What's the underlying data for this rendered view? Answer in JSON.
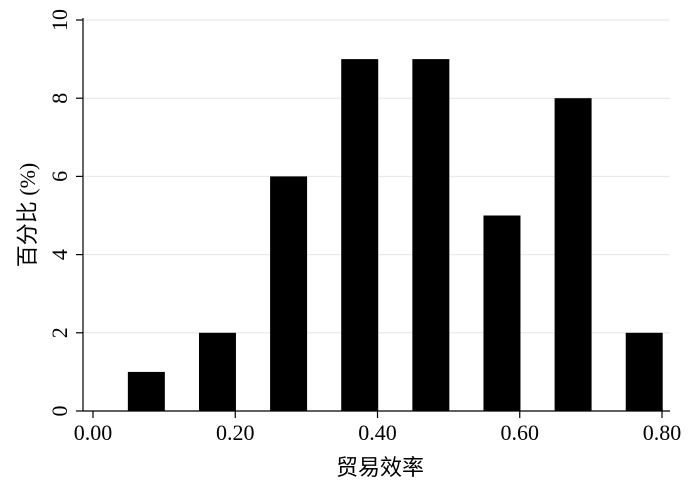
{
  "chart_data": {
    "type": "bar",
    "x_label": "贸易效率",
    "y_label": "百分比 (%)",
    "x": [
      0.075,
      0.175,
      0.275,
      0.375,
      0.475,
      0.575,
      0.675,
      0.775
    ],
    "values": [
      1,
      2,
      6,
      9,
      9,
      5,
      8,
      2
    ],
    "color": "#000000",
    "xlim": [
      0,
      0.8
    ],
    "xticks": [
      {
        "value": 0,
        "label": "0.00"
      },
      {
        "value": 0.2,
        "label": "0.20"
      },
      {
        "value": 0.4,
        "label": "0.40"
      },
      {
        "value": 0.6,
        "label": "0.60"
      },
      {
        "value": 0.8,
        "label": "0.80"
      }
    ],
    "ylim": [
      0,
      10
    ],
    "yticks": [
      0,
      2,
      4,
      6,
      8,
      10
    ],
    "grid": true
  }
}
